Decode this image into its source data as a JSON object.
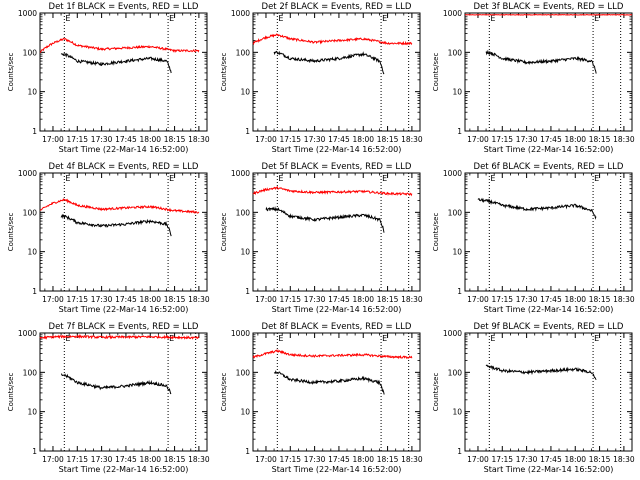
{
  "figure": {
    "start_time_label": "Start Time (22-Mar-14 16:52:00)",
    "ylabel": "Counts/sec",
    "marker_label": "E",
    "x_ticks": [
      {
        "t": 0,
        "label": "17:00"
      },
      {
        "t": 15,
        "label": "17:15"
      },
      {
        "t": 30,
        "label": "17:30"
      },
      {
        "t": 45,
        "label": "17:45"
      },
      {
        "t": 60,
        "label": "18:00"
      },
      {
        "t": 75,
        "label": "18:15"
      },
      {
        "t": 90,
        "label": "18:30"
      }
    ],
    "y_ticks": [
      {
        "v": 1,
        "label": "1"
      },
      {
        "v": 10,
        "label": "10"
      },
      {
        "v": 100,
        "label": "100"
      },
      {
        "v": 1000,
        "label": "1000"
      }
    ]
  },
  "chart_data": [
    {
      "type": "line",
      "title": "Det 1f BLACK = Events, RED = LLD",
      "xlabel": "Start Time (22-Mar-14 16:52:00)",
      "ylabel": "Counts/sec",
      "xlim": [
        "16:52",
        "18:35"
      ],
      "ylim": [
        1,
        1000
      ],
      "yscale": "log",
      "vlines": [
        "17:07",
        "18:11",
        "18:28"
      ],
      "series": [
        {
          "color": "#ff0000",
          "x": [
            "16:52",
            "17:00",
            "17:07",
            "17:15",
            "17:30",
            "17:45",
            "18:00",
            "18:15",
            "18:30"
          ],
          "y": [
            100,
            170,
            220,
            150,
            120,
            130,
            140,
            110,
            110
          ]
        },
        {
          "color": "#000000",
          "x": [
            "17:05",
            "17:07",
            "17:15",
            "17:30",
            "17:45",
            "18:00",
            "18:10",
            "18:13"
          ],
          "y": [
            90,
            90,
            60,
            50,
            60,
            70,
            60,
            30
          ]
        }
      ]
    },
    {
      "type": "line",
      "title": "Det 2f BLACK = Events, RED = LLD",
      "xlabel": "Start Time (22-Mar-14 16:52:00)",
      "ylabel": "Counts/sec",
      "xlim": [
        "16:52",
        "18:35"
      ],
      "ylim": [
        1,
        1000
      ],
      "yscale": "log",
      "vlines": [
        "17:07",
        "18:11",
        "18:28"
      ],
      "series": [
        {
          "color": "#ff0000",
          "x": [
            "16:52",
            "17:00",
            "17:07",
            "17:15",
            "17:30",
            "17:45",
            "18:00",
            "18:15",
            "18:30"
          ],
          "y": [
            170,
            240,
            280,
            220,
            180,
            200,
            220,
            170,
            170
          ]
        },
        {
          "color": "#000000",
          "x": [
            "17:05",
            "17:07",
            "17:15",
            "17:30",
            "17:45",
            "18:00",
            "18:10",
            "18:13"
          ],
          "y": [
            100,
            100,
            70,
            60,
            70,
            90,
            60,
            25
          ]
        }
      ]
    },
    {
      "type": "line",
      "title": "Det 3f BLACK = Events, RED = LLD",
      "xlabel": "Start Time (22-Mar-14 16:52:00)",
      "ylabel": "Counts/sec",
      "xlim": [
        "16:52",
        "18:35"
      ],
      "ylim": [
        1,
        1000
      ],
      "yscale": "log",
      "vlines": [
        "17:07",
        "18:11",
        "18:28"
      ],
      "series": [
        {
          "color": "#ff0000",
          "x": [
            "16:52",
            "18:35"
          ],
          "y": [
            900,
            900
          ]
        },
        {
          "color": "#000000",
          "x": [
            "17:05",
            "17:07",
            "17:15",
            "17:30",
            "17:45",
            "18:00",
            "18:10",
            "18:13"
          ],
          "y": [
            100,
            100,
            70,
            55,
            60,
            70,
            60,
            30
          ]
        }
      ]
    },
    {
      "type": "line",
      "title": "Det 4f BLACK = Events, RED = LLD",
      "xlabel": "Start Time (22-Mar-14 16:52:00)",
      "ylabel": "Counts/sec",
      "xlim": [
        "16:52",
        "18:35"
      ],
      "ylim": [
        1,
        1000
      ],
      "yscale": "log",
      "vlines": [
        "17:07",
        "18:11",
        "18:28"
      ],
      "series": [
        {
          "color": "#ff0000",
          "x": [
            "16:52",
            "17:00",
            "17:07",
            "17:15",
            "17:30",
            "17:45",
            "18:00",
            "18:15",
            "18:30"
          ],
          "y": [
            110,
            170,
            210,
            150,
            120,
            130,
            140,
            110,
            100
          ]
        },
        {
          "color": "#000000",
          "x": [
            "17:05",
            "17:07",
            "17:15",
            "17:30",
            "17:45",
            "18:00",
            "18:10",
            "18:13"
          ],
          "y": [
            80,
            80,
            55,
            45,
            50,
            60,
            50,
            25
          ]
        }
      ]
    },
    {
      "type": "line",
      "title": "Det 5f BLACK = Events, RED = LLD",
      "xlabel": "Start Time (22-Mar-14 16:52:00)",
      "ylabel": "Counts/sec",
      "xlim": [
        "16:52",
        "18:35"
      ],
      "ylim": [
        1,
        1000
      ],
      "yscale": "log",
      "vlines": [
        "17:07",
        "18:11",
        "18:28"
      ],
      "series": [
        {
          "color": "#ff0000",
          "x": [
            "16:52",
            "17:00",
            "17:07",
            "17:15",
            "17:30",
            "17:45",
            "18:00",
            "18:15",
            "18:30"
          ],
          "y": [
            300,
            380,
            420,
            350,
            320,
            330,
            340,
            300,
            290
          ]
        },
        {
          "color": "#000000",
          "x": [
            "17:00",
            "17:07",
            "17:15",
            "17:30",
            "17:45",
            "18:00",
            "18:10",
            "18:13"
          ],
          "y": [
            120,
            120,
            80,
            65,
            75,
            85,
            65,
            30
          ]
        }
      ]
    },
    {
      "type": "line",
      "title": "Det 6f BLACK = Events, RED = LLD",
      "xlabel": "Start Time (22-Mar-14 16:52:00)",
      "ylabel": "Counts/sec",
      "xlim": [
        "16:52",
        "18:35"
      ],
      "ylim": [
        1,
        1000
      ],
      "yscale": "log",
      "vlines": [
        "17:07",
        "18:11",
        "18:28"
      ],
      "series": [
        {
          "color": "#000000",
          "x": [
            "17:00",
            "17:07",
            "17:15",
            "17:30",
            "17:45",
            "18:00",
            "18:10",
            "18:13"
          ],
          "y": [
            210,
            190,
            150,
            120,
            130,
            150,
            110,
            70
          ]
        }
      ]
    },
    {
      "type": "line",
      "title": "Det 7f BLACK = Events, RED = LLD",
      "xlabel": "Start Time (22-Mar-14 16:52:00)",
      "ylabel": "Counts/sec",
      "xlim": [
        "16:52",
        "18:35"
      ],
      "ylim": [
        1,
        1000
      ],
      "yscale": "log",
      "vlines": [
        "17:07",
        "18:11",
        "18:28"
      ],
      "series": [
        {
          "color": "#ff0000",
          "x": [
            "16:52",
            "17:00",
            "17:15",
            "17:30",
            "17:45",
            "18:00",
            "18:15",
            "18:30"
          ],
          "y": [
            750,
            800,
            820,
            780,
            790,
            800,
            780,
            750
          ]
        },
        {
          "color": "#000000",
          "x": [
            "17:05",
            "17:07",
            "17:15",
            "17:30",
            "17:45",
            "18:00",
            "18:10",
            "18:13"
          ],
          "y": [
            85,
            85,
            55,
            40,
            45,
            55,
            45,
            28
          ]
        }
      ]
    },
    {
      "type": "line",
      "title": "Det 8f BLACK = Events, RED = LLD",
      "xlabel": "Start Time (22-Mar-14 16:52:00)",
      "ylabel": "Counts/sec",
      "xlim": [
        "16:52",
        "18:35"
      ],
      "ylim": [
        1,
        1000
      ],
      "yscale": "log",
      "vlines": [
        "17:07",
        "18:11",
        "18:28"
      ],
      "series": [
        {
          "color": "#ff0000",
          "x": [
            "16:52",
            "17:00",
            "17:07",
            "17:15",
            "17:30",
            "17:45",
            "18:00",
            "18:15",
            "18:30"
          ],
          "y": [
            240,
            300,
            350,
            280,
            260,
            270,
            280,
            250,
            240
          ]
        },
        {
          "color": "#000000",
          "x": [
            "17:05",
            "17:07",
            "17:15",
            "17:30",
            "17:45",
            "18:00",
            "18:10",
            "18:13"
          ],
          "y": [
            100,
            100,
            65,
            55,
            60,
            70,
            55,
            25
          ]
        }
      ]
    },
    {
      "type": "line",
      "title": "Det 9f BLACK = Events, RED = LLD",
      "xlabel": "Start Time (22-Mar-14 16:52:00)",
      "ylabel": "Counts/sec",
      "xlim": [
        "16:52",
        "18:35"
      ],
      "ylim": [
        1,
        1000
      ],
      "yscale": "log",
      "vlines": [
        "17:07",
        "18:11",
        "18:28"
      ],
      "series": [
        {
          "color": "#000000",
          "x": [
            "17:05",
            "17:07",
            "17:15",
            "17:30",
            "17:45",
            "18:00",
            "18:10",
            "18:13"
          ],
          "y": [
            150,
            140,
            110,
            100,
            110,
            120,
            100,
            60
          ]
        }
      ]
    }
  ]
}
